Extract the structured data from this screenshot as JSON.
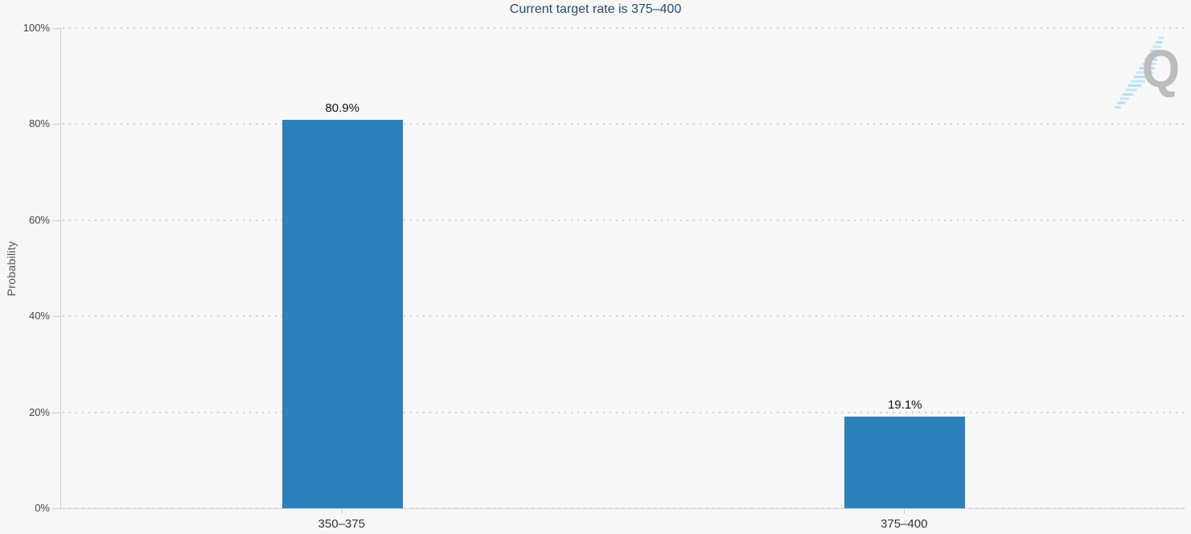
{
  "page": {
    "background_color": "#f7f7f7"
  },
  "chart_data": {
    "type": "bar",
    "title": "Current target rate is 375–400",
    "categories": [
      "350–375",
      "375–400"
    ],
    "values": [
      80.9,
      19.1
    ],
    "value_labels": [
      "80.9%",
      "19.1%"
    ],
    "xlabel": "",
    "ylabel": "Probability",
    "ylim": [
      0,
      100
    ],
    "yticks": [
      0,
      20,
      40,
      60,
      80,
      100
    ],
    "ytick_labels": [
      "0%",
      "20%",
      "40%",
      "60%",
      "80%",
      "100%"
    ],
    "grid": "horizontal dotted gridlines on",
    "legend_position": "none",
    "bar_color": "#2d81ba",
    "title_color": "#274b6d",
    "axis_color": "#cccccc"
  },
  "watermark": {
    "letter": "Q",
    "letter_color": "#bcbcbc",
    "stripe_color": "#a9ddf3"
  }
}
